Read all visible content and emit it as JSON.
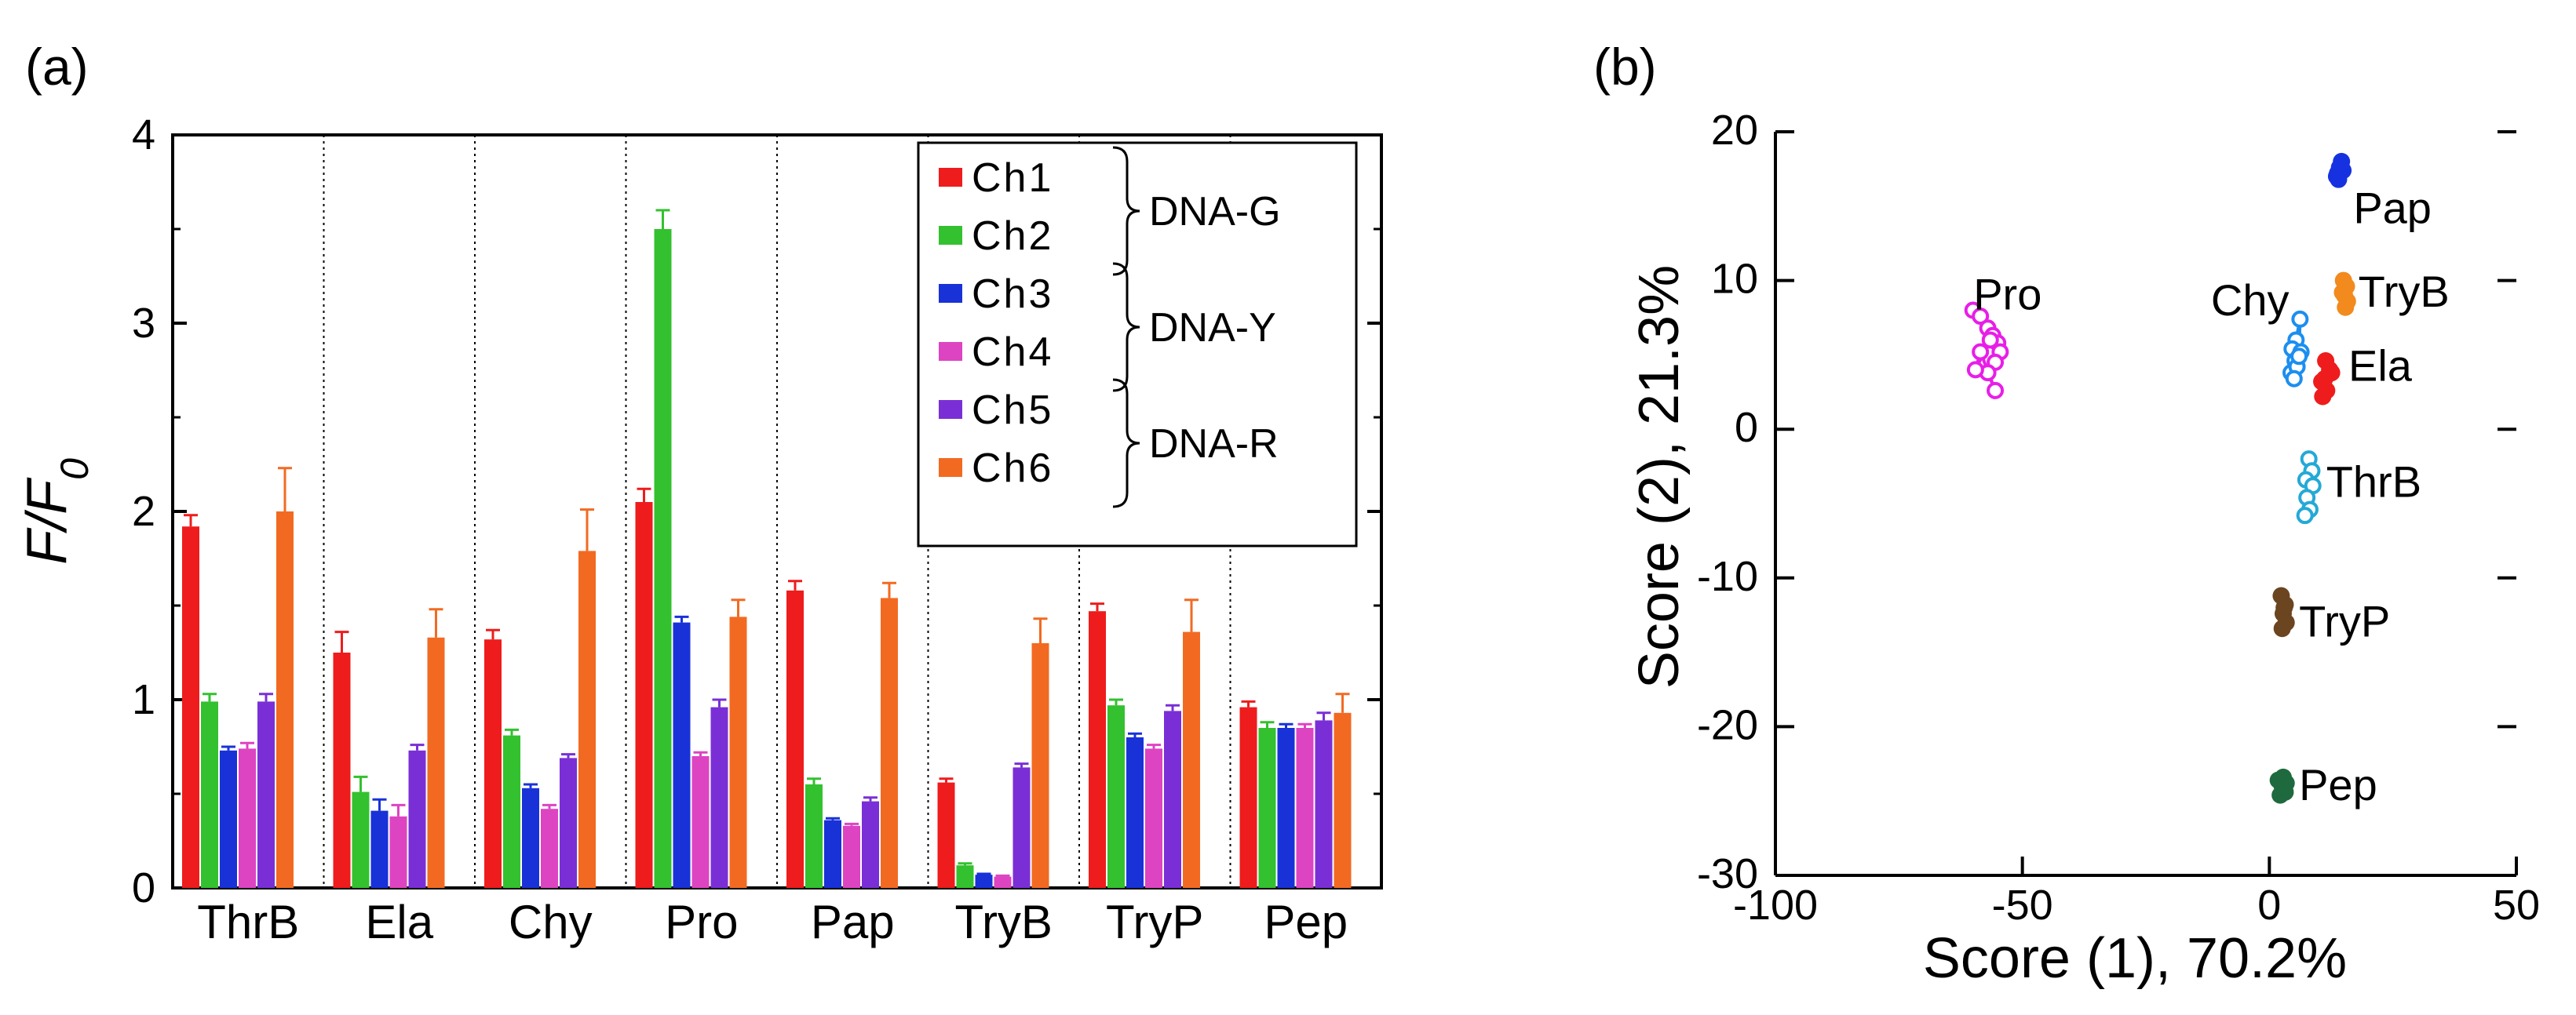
{
  "panels": {
    "a": "(a)",
    "b": "(b)"
  },
  "chart_data": [
    {
      "type": "bar",
      "ylabel": "F/F",
      "ylabel_subscript": "0",
      "ylim": [
        0,
        4
      ],
      "yticks": [
        0,
        1,
        2,
        3,
        4
      ],
      "categories": [
        "ThrB",
        "Ela",
        "Chy",
        "Pro",
        "Pap",
        "TryB",
        "TryP",
        "Pep"
      ],
      "series": [
        {
          "name": "Ch1",
          "color": "#ee1c1c",
          "values": [
            1.92,
            1.25,
            1.32,
            2.05,
            1.58,
            0.56,
            1.47,
            0.96
          ],
          "errors": [
            0.06,
            0.11,
            0.05,
            0.07,
            0.05,
            0.02,
            0.04,
            0.03
          ]
        },
        {
          "name": "Ch2",
          "color": "#33c12f",
          "values": [
            0.99,
            0.51,
            0.81,
            3.5,
            0.55,
            0.12,
            0.97,
            0.85
          ],
          "errors": [
            0.04,
            0.08,
            0.03,
            0.1,
            0.03,
            0.01,
            0.03,
            0.03
          ]
        },
        {
          "name": "Ch3",
          "color": "#1832d8",
          "values": [
            0.73,
            0.41,
            0.53,
            1.41,
            0.36,
            0.07,
            0.8,
            0.85
          ],
          "errors": [
            0.02,
            0.06,
            0.02,
            0.03,
            0.01,
            0.005,
            0.02,
            0.02
          ]
        },
        {
          "name": "Ch4",
          "color": "#dd44c2",
          "values": [
            0.74,
            0.38,
            0.42,
            0.7,
            0.33,
            0.06,
            0.74,
            0.85
          ],
          "errors": [
            0.03,
            0.06,
            0.02,
            0.02,
            0.01,
            0.005,
            0.02,
            0.02
          ]
        },
        {
          "name": "Ch5",
          "color": "#7a2fd6",
          "values": [
            0.99,
            0.73,
            0.69,
            0.96,
            0.46,
            0.64,
            0.94,
            0.89
          ],
          "errors": [
            0.04,
            0.03,
            0.02,
            0.04,
            0.02,
            0.02,
            0.03,
            0.04
          ]
        },
        {
          "name": "Ch6",
          "color": "#f26a21",
          "values": [
            2.0,
            1.33,
            1.79,
            1.44,
            1.54,
            1.3,
            1.36,
            0.93
          ],
          "errors": [
            0.23,
            0.15,
            0.22,
            0.09,
            0.08,
            0.13,
            0.17,
            0.1
          ]
        }
      ],
      "legend": {
        "placement": "top-right",
        "groups": [
          {
            "label": "DNA-G",
            "channels": [
              "Ch1",
              "Ch2"
            ]
          },
          {
            "label": "DNA-Y",
            "channels": [
              "Ch3",
              "Ch4"
            ]
          },
          {
            "label": "DNA-R",
            "channels": [
              "Ch5",
              "Ch6"
            ]
          }
        ]
      }
    },
    {
      "type": "scatter",
      "xlabel": "Score (1), 70.2%",
      "ylabel": "Score (2), 21.3%",
      "xlim": [
        -100,
        50
      ],
      "ylim": [
        -30,
        20
      ],
      "xticks": [
        -100,
        -50,
        0,
        50
      ],
      "yticks": [
        -30,
        -20,
        -10,
        0,
        10,
        20
      ],
      "clusters": [
        {
          "name": "Pro",
          "color": "#e81ee8",
          "marker": "open",
          "points": [
            [
              -60,
              8.0
            ],
            [
              -58.5,
              7.6
            ],
            [
              -57,
              6.8
            ],
            [
              -56,
              6.3
            ],
            [
              -55,
              5.8
            ],
            [
              -54.5,
              5.2
            ],
            [
              -55.5,
              4.5
            ],
            [
              -57,
              3.8
            ],
            [
              -55.5,
              2.6
            ],
            [
              -58.5,
              5.2
            ],
            [
              -59.5,
              4.0
            ],
            [
              -56.5,
              6.0
            ]
          ]
        },
        {
          "name": "Pap",
          "color": "#1632e0",
          "marker": "filled",
          "points": [
            [
              13.6,
              17.0
            ],
            [
              14.2,
              17.6
            ],
            [
              14.6,
              18.0
            ],
            [
              14.0,
              16.8
            ],
            [
              14.9,
              17.4
            ],
            [
              13.8,
              17.2
            ]
          ]
        },
        {
          "name": "TryB",
          "color": "#f28a1e",
          "marker": "filled",
          "points": [
            [
              15.0,
              10.0
            ],
            [
              15.6,
              9.6
            ],
            [
              15.2,
              9.0
            ],
            [
              15.8,
              8.6
            ],
            [
              15.4,
              8.2
            ],
            [
              14.8,
              9.2
            ]
          ]
        },
        {
          "name": "Chy",
          "color": "#1c8ef0",
          "marker": "open",
          "points": [
            [
              6.2,
              7.4
            ],
            [
              5.4,
              6.0
            ],
            [
              4.6,
              5.4
            ],
            [
              5.2,
              4.6
            ],
            [
              4.4,
              3.8
            ],
            [
              5.6,
              4.2
            ],
            [
              6.4,
              5.2
            ],
            [
              5.0,
              3.4
            ],
            [
              6.0,
              4.9
            ]
          ]
        },
        {
          "name": "Ela",
          "color": "#ee1c1c",
          "marker": "filled",
          "points": [
            [
              11.4,
              4.6
            ],
            [
              12.2,
              4.0
            ],
            [
              10.6,
              3.2
            ],
            [
              11.6,
              2.6
            ],
            [
              10.8,
              2.2
            ],
            [
              12.6,
              3.8
            ],
            [
              11.2,
              3.4
            ]
          ]
        },
        {
          "name": "ThrB",
          "color": "#24a9d6",
          "marker": "open",
          "points": [
            [
              8.0,
              -2.0
            ],
            [
              8.6,
              -2.8
            ],
            [
              7.4,
              -3.4
            ],
            [
              8.8,
              -3.8
            ],
            [
              7.6,
              -4.6
            ],
            [
              8.2,
              -5.4
            ],
            [
              7.2,
              -5.8
            ]
          ]
        },
        {
          "name": "TryP",
          "color": "#6b4420",
          "marker": "filled",
          "points": [
            [
              2.4,
              -11.2
            ],
            [
              3.2,
              -11.8
            ],
            [
              2.8,
              -12.4
            ],
            [
              3.4,
              -13.0
            ],
            [
              2.6,
              -13.4
            ],
            [
              3.0,
              -12.0
            ]
          ]
        },
        {
          "name": "Pep",
          "color": "#1e6a3e",
          "marker": "filled",
          "points": [
            [
              1.8,
              -23.6
            ],
            [
              2.6,
              -24.0
            ],
            [
              3.2,
              -24.4
            ],
            [
              2.2,
              -24.6
            ],
            [
              3.4,
              -23.8
            ],
            [
              2.8,
              -23.4
            ]
          ]
        }
      ]
    }
  ]
}
